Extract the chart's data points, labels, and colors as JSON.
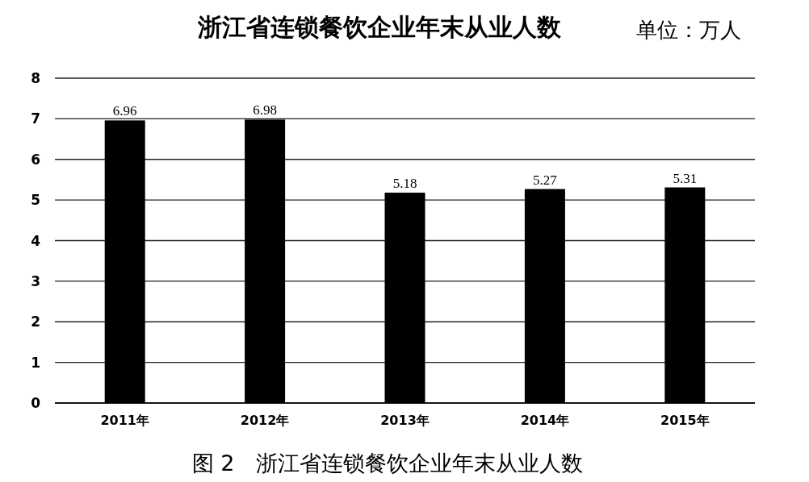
{
  "chart_data": {
    "type": "bar",
    "title": "浙江省连锁餐饮企业年末从业人数",
    "annotations": [
      "单位：万人",
      "图 2　浙江省连锁餐饮企业年末从业人数"
    ],
    "categories": [
      "2011年",
      "2012年",
      "2013年",
      "2014年",
      "2015年"
    ],
    "values": [
      6.96,
      6.98,
      5.18,
      5.27,
      5.31
    ],
    "color": "#000000",
    "ylim": [
      0,
      8
    ],
    "yticks": [
      0,
      1,
      2,
      3,
      4,
      5,
      6,
      7,
      8
    ],
    "grid": "y",
    "data_labels": true
  }
}
